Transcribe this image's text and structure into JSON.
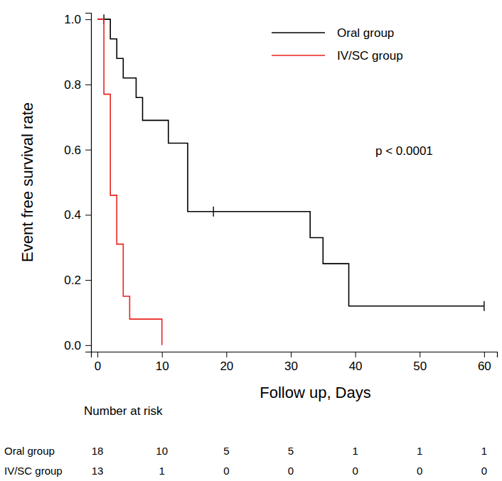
{
  "chart_data": {
    "type": "step",
    "y_label": "Event free survival rate",
    "x_label": "Follow up, Days",
    "annotation": "p < 0.0001",
    "xlim": [
      -1,
      62
    ],
    "xticks": [
      0,
      10,
      20,
      30,
      40,
      50,
      60
    ],
    "ylim": [
      -0.02,
      1.02
    ],
    "yticks": [
      {
        "value": 0,
        "label": "0.0"
      },
      0.2,
      0.4,
      0.6,
      0.8,
      {
        "value": 1,
        "label": "1.0"
      }
    ],
    "grid": false,
    "legend": "top-right",
    "series": [
      {
        "name": "Oral group",
        "color": "#000000",
        "x": [
          0,
          2,
          3,
          4,
          6,
          7,
          11,
          14,
          33,
          35,
          39,
          60
        ],
        "values": [
          1,
          0.94,
          0.88,
          0.82,
          0.76,
          0.69,
          0.62,
          0.41,
          0.33,
          0.25,
          0.12,
          0.12
        ],
        "censor_x": [
          1,
          18,
          60
        ],
        "censor_values": [
          1,
          0.41,
          0.12
        ]
      },
      {
        "name": "IV/SC group",
        "color": "#e8221c",
        "x": [
          0,
          1,
          2,
          3,
          4,
          5,
          10
        ],
        "values": [
          1,
          0.77,
          0.46,
          0.31,
          0.15,
          0.08,
          0
        ],
        "censor_x": [],
        "censor_values": []
      }
    ],
    "risk_table": {
      "title": "Number at risk",
      "x": [
        0,
        10,
        20,
        30,
        40,
        50,
        60
      ],
      "counts": [
        [
          18,
          10,
          5,
          5,
          1,
          1,
          1
        ],
        [
          13,
          1,
          0,
          0,
          0,
          0,
          0
        ]
      ]
    }
  }
}
